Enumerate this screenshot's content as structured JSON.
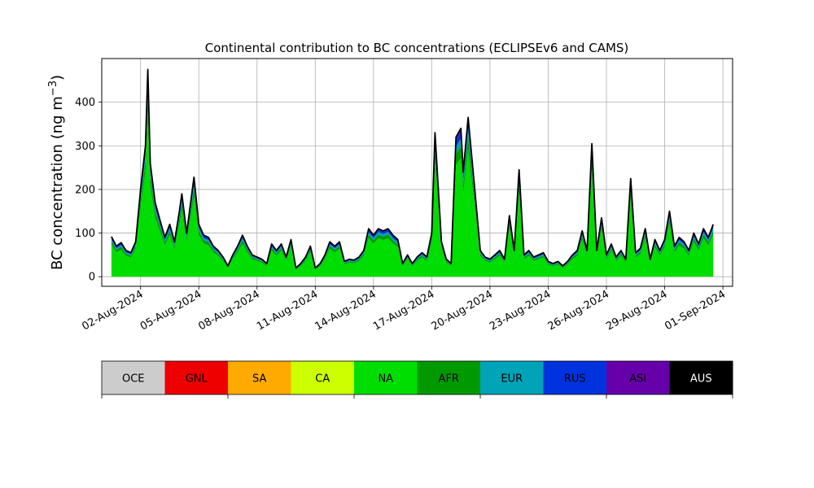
{
  "chart_data": {
    "type": "area",
    "stacked": true,
    "title": "Continental contribution to BC concentrations (ECLIPSEv6 and CAMS)",
    "ylabel_main": "BC concentration (ng m",
    "ylabel_exp": "−3",
    "ylabel_close": ")",
    "xlabel": "",
    "x_start_date": "2024-07-31",
    "xlim": [
      "2024-07-31",
      "2024-09-01T12:00"
    ],
    "ylim": [
      -22,
      500
    ],
    "grid": true,
    "yticks": [
      0,
      100,
      200,
      300,
      400
    ],
    "xtick_labels": [
      "02-Aug-2024",
      "05-Aug-2024",
      "08-Aug-2024",
      "11-Aug-2024",
      "14-Aug-2024",
      "17-Aug-2024",
      "20-Aug-2024",
      "23-Aug-2024",
      "26-Aug-2024",
      "29-Aug-2024",
      "01-Sep-2024"
    ],
    "xtick_dates": [
      "2024-08-02",
      "2024-08-05",
      "2024-08-08",
      "2024-08-11",
      "2024-08-14",
      "2024-08-17",
      "2024-08-20",
      "2024-08-23",
      "2024-08-26",
      "2024-08-29",
      "2024-09-01"
    ],
    "total_outline": {
      "color": "#000000",
      "points": [
        [
          "2024-07-31T12:00",
          92
        ],
        [
          "2024-07-31T18:00",
          70
        ],
        [
          "2024-08-01T00:00",
          78
        ],
        [
          "2024-08-01T06:00",
          60
        ],
        [
          "2024-08-01T12:00",
          55
        ],
        [
          "2024-08-01T18:00",
          80
        ],
        [
          "2024-08-02T00:00",
          200
        ],
        [
          "2024-08-02T06:00",
          300
        ],
        [
          "2024-08-02T09:00",
          475
        ],
        [
          "2024-08-02T12:00",
          260
        ],
        [
          "2024-08-02T18:00",
          170
        ],
        [
          "2024-08-03T00:00",
          130
        ],
        [
          "2024-08-03T06:00",
          90
        ],
        [
          "2024-08-03T12:00",
          120
        ],
        [
          "2024-08-03T18:00",
          80
        ],
        [
          "2024-08-04T00:00",
          150
        ],
        [
          "2024-08-04T03:00",
          190
        ],
        [
          "2024-08-04T09:00",
          100
        ],
        [
          "2024-08-04T18:00",
          228
        ],
        [
          "2024-08-05T00:00",
          120
        ],
        [
          "2024-08-05T06:00",
          95
        ],
        [
          "2024-08-05T12:00",
          90
        ],
        [
          "2024-08-05T18:00",
          70
        ],
        [
          "2024-08-06T00:00",
          60
        ],
        [
          "2024-08-06T06:00",
          45
        ],
        [
          "2024-08-06T12:00",
          25
        ],
        [
          "2024-08-06T18:00",
          50
        ],
        [
          "2024-08-07T00:00",
          70
        ],
        [
          "2024-08-07T06:00",
          95
        ],
        [
          "2024-08-07T12:00",
          70
        ],
        [
          "2024-08-07T18:00",
          50
        ],
        [
          "2024-08-08T00:00",
          45
        ],
        [
          "2024-08-08T06:00",
          40
        ],
        [
          "2024-08-08T12:00",
          30
        ],
        [
          "2024-08-08T18:00",
          75
        ],
        [
          "2024-08-09T00:00",
          60
        ],
        [
          "2024-08-09T06:00",
          75
        ],
        [
          "2024-08-09T12:00",
          45
        ],
        [
          "2024-08-09T18:00",
          85
        ],
        [
          "2024-08-10T00:00",
          20
        ],
        [
          "2024-08-10T06:00",
          30
        ],
        [
          "2024-08-10T12:00",
          45
        ],
        [
          "2024-08-10T18:00",
          70
        ],
        [
          "2024-08-11T00:00",
          20
        ],
        [
          "2024-08-11T06:00",
          30
        ],
        [
          "2024-08-11T12:00",
          50
        ],
        [
          "2024-08-11T18:00",
          80
        ],
        [
          "2024-08-12T00:00",
          70
        ],
        [
          "2024-08-12T06:00",
          80
        ],
        [
          "2024-08-12T12:00",
          35
        ],
        [
          "2024-08-12T18:00",
          40
        ],
        [
          "2024-08-13T00:00",
          38
        ],
        [
          "2024-08-13T06:00",
          45
        ],
        [
          "2024-08-13T12:00",
          60
        ],
        [
          "2024-08-13T18:00",
          110
        ],
        [
          "2024-08-14T00:00",
          95
        ],
        [
          "2024-08-14T06:00",
          110
        ],
        [
          "2024-08-14T12:00",
          105
        ],
        [
          "2024-08-14T18:00",
          110
        ],
        [
          "2024-08-15T00:00",
          95
        ],
        [
          "2024-08-15T06:00",
          85
        ],
        [
          "2024-08-15T12:00",
          30
        ],
        [
          "2024-08-15T18:00",
          50
        ],
        [
          "2024-08-16T00:00",
          30
        ],
        [
          "2024-08-16T06:00",
          45
        ],
        [
          "2024-08-16T12:00",
          55
        ],
        [
          "2024-08-16T18:00",
          45
        ],
        [
          "2024-08-17T00:00",
          100
        ],
        [
          "2024-08-17T04:00",
          330
        ],
        [
          "2024-08-17T12:00",
          80
        ],
        [
          "2024-08-17T18:00",
          40
        ],
        [
          "2024-08-18T00:00",
          30
        ],
        [
          "2024-08-18T06:00",
          320
        ],
        [
          "2024-08-18T12:00",
          340
        ],
        [
          "2024-08-18T15:00",
          240
        ],
        [
          "2024-08-18T21:00",
          365
        ],
        [
          "2024-08-19T06:00",
          185
        ],
        [
          "2024-08-19T12:00",
          60
        ],
        [
          "2024-08-19T18:00",
          45
        ],
        [
          "2024-08-20T00:00",
          40
        ],
        [
          "2024-08-20T06:00",
          50
        ],
        [
          "2024-08-20T12:00",
          60
        ],
        [
          "2024-08-20T18:00",
          40
        ],
        [
          "2024-08-21T00:00",
          140
        ],
        [
          "2024-08-21T06:00",
          60
        ],
        [
          "2024-08-21T12:00",
          245
        ],
        [
          "2024-08-21T18:00",
          50
        ],
        [
          "2024-08-22T00:00",
          60
        ],
        [
          "2024-08-22T06:00",
          45
        ],
        [
          "2024-08-22T12:00",
          50
        ],
        [
          "2024-08-22T18:00",
          55
        ],
        [
          "2024-08-23T00:00",
          35
        ],
        [
          "2024-08-23T06:00",
          30
        ],
        [
          "2024-08-23T12:00",
          35
        ],
        [
          "2024-08-23T18:00",
          25
        ],
        [
          "2024-08-24T00:00",
          35
        ],
        [
          "2024-08-24T06:00",
          50
        ],
        [
          "2024-08-24T12:00",
          60
        ],
        [
          "2024-08-24T18:00",
          105
        ],
        [
          "2024-08-25T00:00",
          60
        ],
        [
          "2024-08-25T06:00",
          305
        ],
        [
          "2024-08-25T12:00",
          60
        ],
        [
          "2024-08-25T18:00",
          135
        ],
        [
          "2024-08-26T00:00",
          50
        ],
        [
          "2024-08-26T06:00",
          75
        ],
        [
          "2024-08-26T12:00",
          45
        ],
        [
          "2024-08-26T18:00",
          60
        ],
        [
          "2024-08-27T00:00",
          40
        ],
        [
          "2024-08-27T06:00",
          225
        ],
        [
          "2024-08-27T12:00",
          55
        ],
        [
          "2024-08-27T18:00",
          65
        ],
        [
          "2024-08-28T00:00",
          110
        ],
        [
          "2024-08-28T06:00",
          40
        ],
        [
          "2024-08-28T12:00",
          85
        ],
        [
          "2024-08-28T18:00",
          60
        ],
        [
          "2024-08-29T00:00",
          85
        ],
        [
          "2024-08-29T06:00",
          150
        ],
        [
          "2024-08-29T12:00",
          70
        ],
        [
          "2024-08-29T18:00",
          90
        ],
        [
          "2024-08-30T00:00",
          80
        ],
        [
          "2024-08-30T06:00",
          60
        ],
        [
          "2024-08-30T12:00",
          100
        ],
        [
          "2024-08-30T18:00",
          75
        ],
        [
          "2024-08-31T00:00",
          110
        ],
        [
          "2024-08-31T06:00",
          90
        ],
        [
          "2024-08-31T12:00",
          120
        ]
      ]
    },
    "layers": [
      {
        "name": "NA",
        "color": "#00dd00",
        "fraction_of_total": 0.8
      },
      {
        "name": "AFR",
        "color": "#009900",
        "fraction_of_total": 0.08
      },
      {
        "name": "EUR",
        "color": "#00a3b8",
        "fraction_of_total": 0.05
      },
      {
        "name": "RUS",
        "color": "#0033dd",
        "fraction_of_total": 0.05
      },
      {
        "name": "ASI",
        "color": "#6600aa",
        "fraction_of_total": 0.02
      }
    ],
    "colorbar": {
      "regions": [
        {
          "label": "OCE",
          "color": "#cccccc"
        },
        {
          "label": "GNL",
          "color": "#ee0000"
        },
        {
          "label": "SA",
          "color": "#ffaa00"
        },
        {
          "label": "CA",
          "color": "#ccff00"
        },
        {
          "label": "NA",
          "color": "#00dd00"
        },
        {
          "label": "AFR",
          "color": "#009900"
        },
        {
          "label": "EUR",
          "color": "#00a3b8"
        },
        {
          "label": "RUS",
          "color": "#0033dd"
        },
        {
          "label": "ASI",
          "color": "#6600aa"
        },
        {
          "label": "AUS",
          "color": "#000000"
        }
      ]
    }
  }
}
